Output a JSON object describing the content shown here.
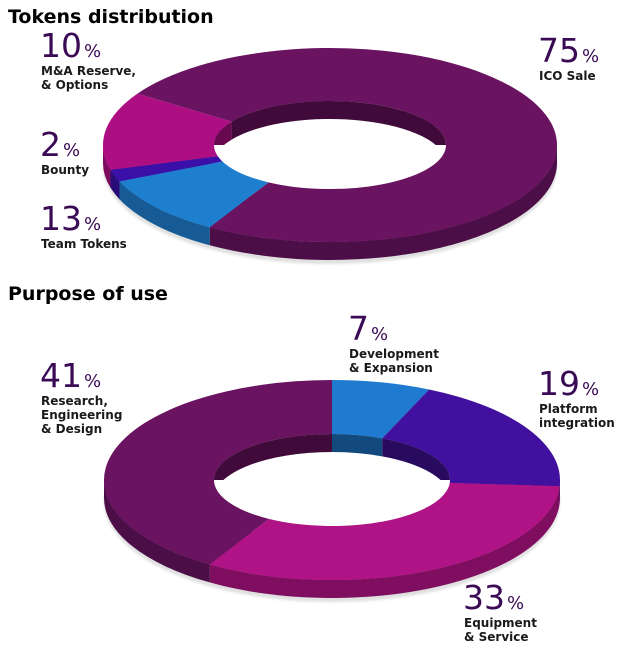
{
  "chart_data": [
    {
      "type": "pie",
      "title": "Tokens distribution",
      "slices": [
        {
          "label": [
            "ICO Sale"
          ],
          "value": 75,
          "value_text": "75",
          "unit": "%",
          "color": "#6a1361"
        },
        {
          "label": [
            "M&A Reserve,",
            "& Options"
          ],
          "value": 10,
          "value_text": "10",
          "unit": "%",
          "color": "#1f7fcf"
        },
        {
          "label": [
            "Bounty"
          ],
          "value": 2,
          "value_text": "2",
          "unit": "%",
          "color": "#3a10a8"
        },
        {
          "label": [
            "Team Tokens"
          ],
          "value": 13,
          "value_text": "13",
          "unit": "%",
          "color": "#ad0f83"
        }
      ]
    },
    {
      "type": "pie",
      "title": "Purpose of use",
      "slices": [
        {
          "label": [
            "Development",
            "& Expansion"
          ],
          "value": 7,
          "value_text": "7",
          "unit": "%",
          "color": "#1e7bd0"
        },
        {
          "label": [
            "Platform",
            "integration"
          ],
          "value": 19,
          "value_text": "19",
          "unit": "%",
          "color": "#42109e"
        },
        {
          "label": [
            "Equipment",
            "& Service"
          ],
          "value": 33,
          "value_text": "33",
          "unit": "%",
          "color": "#b01385"
        },
        {
          "label": [
            "Research,",
            "Engineering",
            "& Design"
          ],
          "value": 41,
          "value_text": "41",
          "unit": "%",
          "color": "#6a1361"
        }
      ]
    }
  ]
}
